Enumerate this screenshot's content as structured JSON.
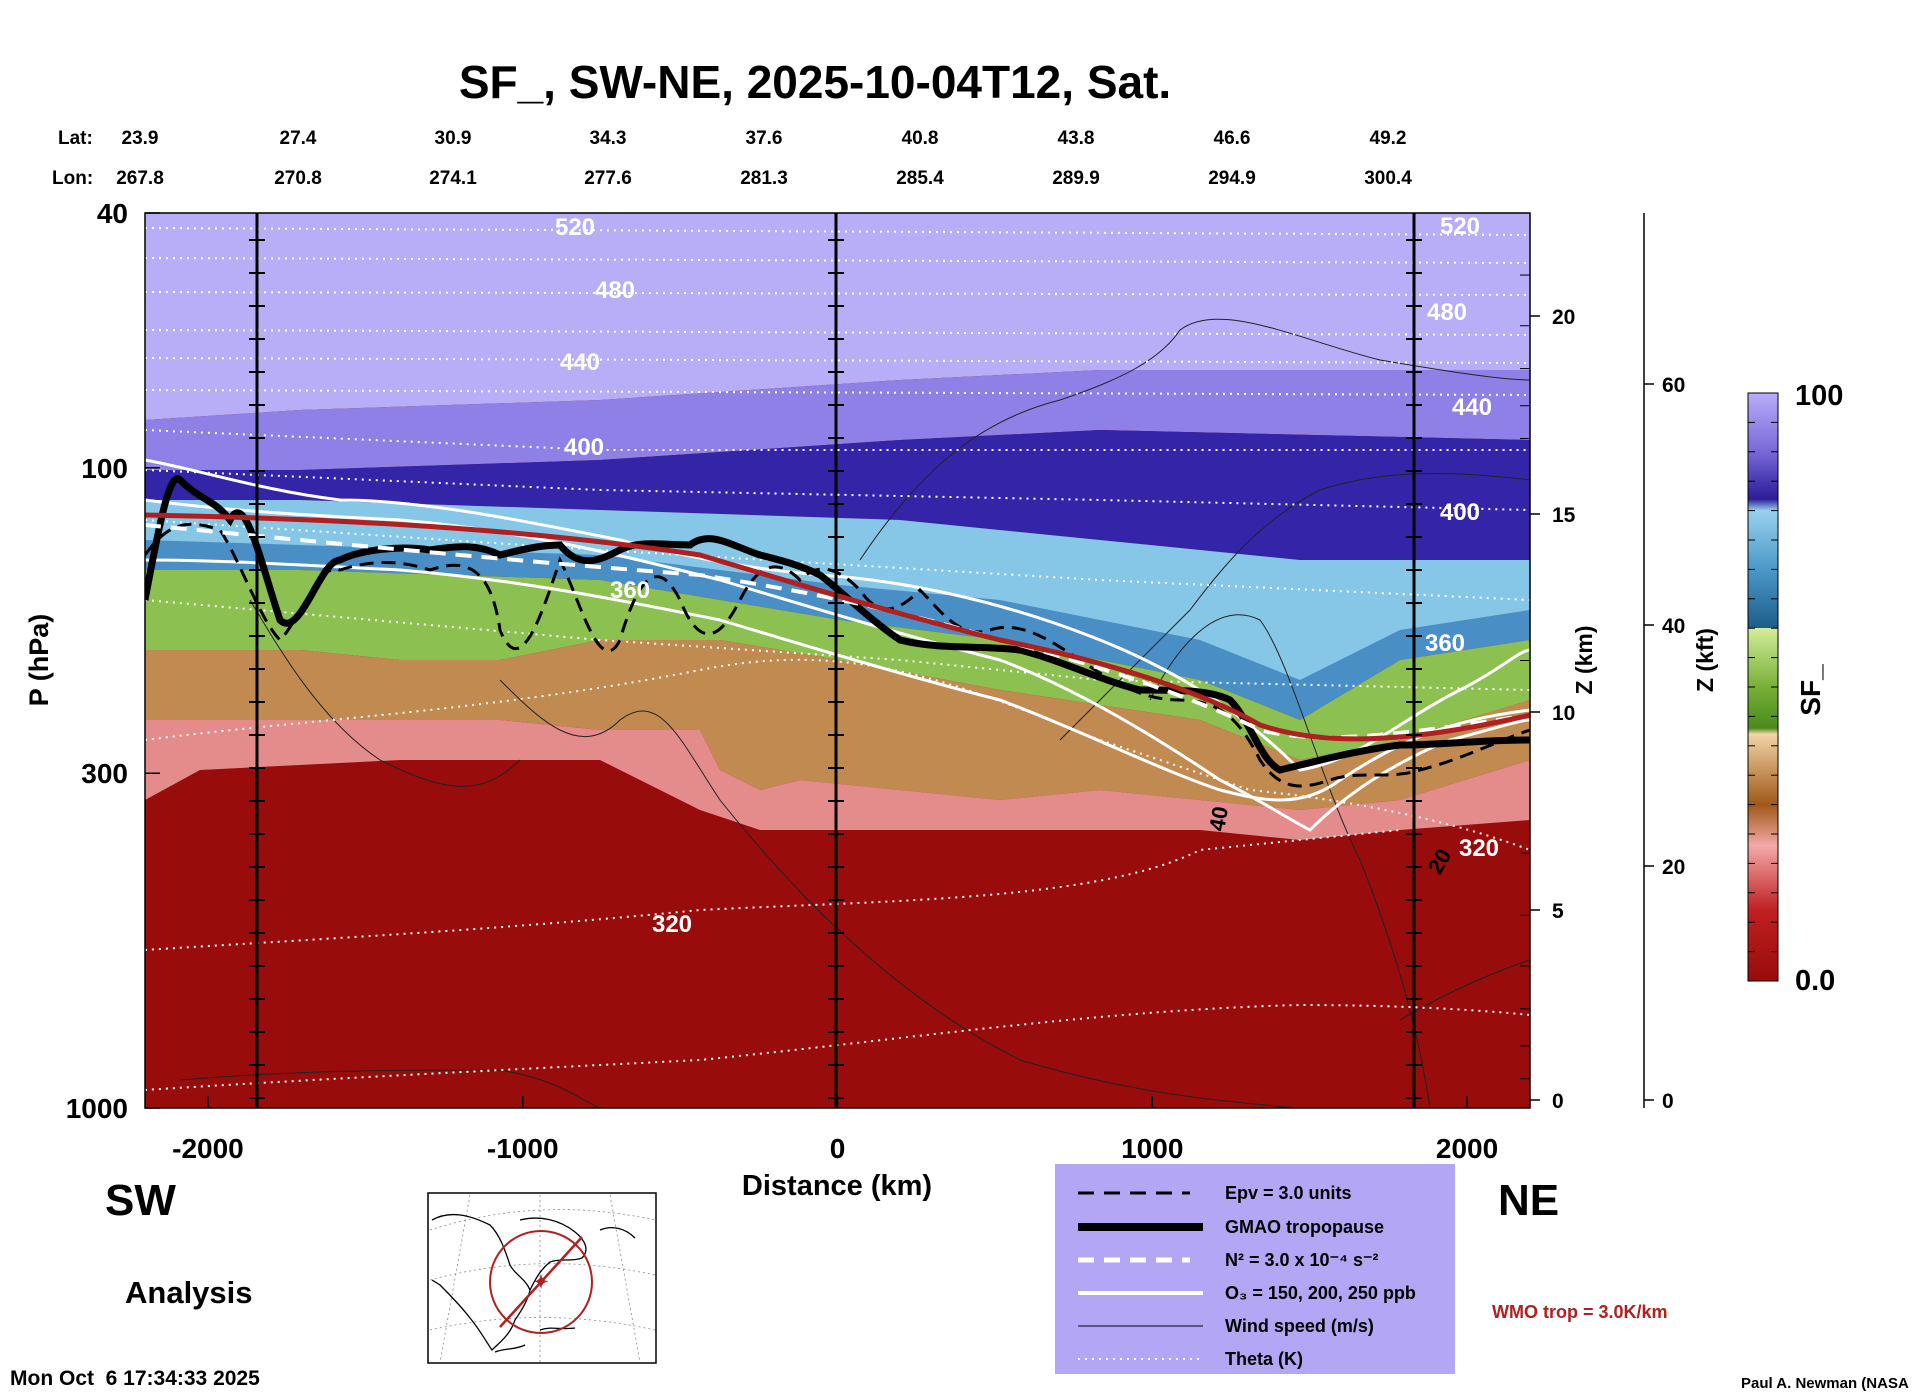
{
  "chart_data": {
    "type": "cross-section",
    "title": "SF_, SW-NE, 2025-10-04T12, Sat.",
    "xlabel": "Distance (km)",
    "ylabel": "P (hPa)",
    "ylabel_right": "Z (km)",
    "ylabel_right2": "Z (kft)",
    "x_ticks": [
      "-2000",
      "-1000",
      "0",
      "1000",
      "2000"
    ],
    "y_ticks": [
      "40",
      "100",
      "300",
      "1000"
    ],
    "z_km_ticks": [
      "0",
      "5",
      "10",
      "15",
      "20"
    ],
    "z_kft_ticks": [
      "0",
      "20",
      "40",
      "60"
    ],
    "lat_label": "Lat:",
    "lon_label": "Lon:",
    "lat_values": [
      "23.9",
      "27.4",
      "30.9",
      "34.3",
      "37.6",
      "40.8",
      "43.8",
      "46.6",
      "49.2"
    ],
    "lon_values": [
      "267.8",
      "270.8",
      "274.1",
      "277.6",
      "281.3",
      "285.4",
      "289.9",
      "294.9",
      "300.4"
    ],
    "colorbar_label": "SF_",
    "colorbar_max": "100",
    "colorbar_min": "0.0",
    "theta_labels": [
      "520",
      "480",
      "440",
      "400",
      "360",
      "320"
    ],
    "wind_labels": [
      "40",
      "20"
    ],
    "tropopause": {
      "x_km": [
        -2200,
        -1900,
        -1600,
        -1300,
        -1000,
        -700,
        -400,
        -100,
        200,
        500,
        800,
        1100,
        1400,
        1700,
        2000,
        2200
      ],
      "p_hpa": [
        150,
        120,
        135,
        130,
        135,
        140,
        145,
        175,
        205,
        210,
        230,
        240,
        300,
        305,
        278,
        278
      ]
    },
    "wmo_tropopause": {
      "x_km": [
        -2200,
        -1600,
        -1000,
        -400,
        0,
        400,
        800,
        1200,
        1500,
        1800,
        2200
      ],
      "p_hpa": [
        113,
        118,
        128,
        140,
        162,
        188,
        212,
        255,
        280,
        278,
        258
      ]
    }
  },
  "labels": {
    "sw": "SW",
    "ne": "NE",
    "analysis": "Analysis",
    "timestamp": "Mon Oct  6 17:34:33 2025",
    "credit": "Paul A. Newman (NASA",
    "wmo_trop": "WMO trop = 3.0K/km"
  },
  "legend": {
    "items": [
      "Epv = 3.0 units",
      "GMAO tropopause",
      "N² = 3.0 x 10⁻⁴ s⁻²",
      "O₃ = 150, 200, 250 ppb",
      "Wind speed (m/s)",
      "Theta (K)"
    ]
  },
  "colors": {
    "legend_bg": "#b3a6f5",
    "wmo_red": "#b02020",
    "low_red": "#9c0e0e",
    "top_lavender": "#b8adf7"
  }
}
